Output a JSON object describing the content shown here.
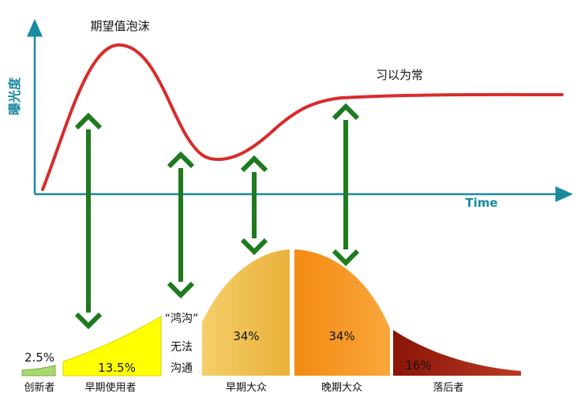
{
  "title_label": "期望值泡沫",
  "y_axis_label": "曝光度",
  "x_axis_label": "Time",
  "plateau_label": "习以为常",
  "chasm": {
    "label": "“鸿沟”",
    "note_line1": "无法",
    "note_line2": "沟通"
  },
  "segments": [
    {
      "percent": "2.5%",
      "name": "创新者",
      "color": "#a9d86e"
    },
    {
      "percent": "13.5%",
      "name": "早期使用者",
      "color": "#ffff00"
    },
    {
      "percent": "34%",
      "name": "早期大众",
      "color": "#f0b93c"
    },
    {
      "percent": "34%",
      "name": "晚期大众",
      "color": "#f7931e"
    },
    {
      "percent": "16%",
      "name": "落后者",
      "color": "#9b1b0c"
    }
  ],
  "colors": {
    "axis": "#1a8aa0",
    "hype_curve": "#d92b2b",
    "arrow": "#1e7a1e",
    "axis_label": "#1a8aa0"
  }
}
